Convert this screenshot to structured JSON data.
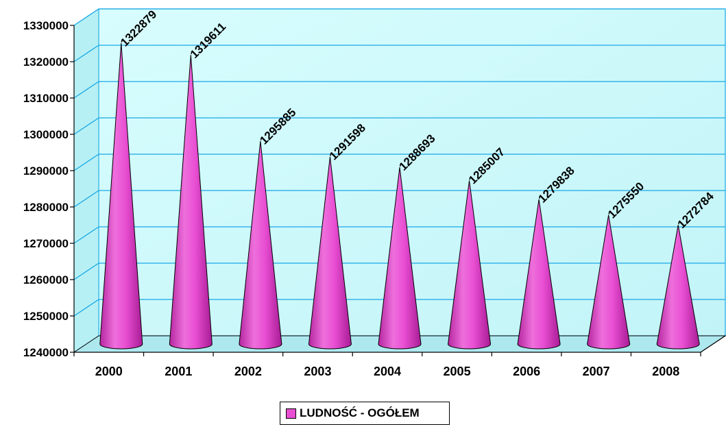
{
  "chart_data": {
    "type": "bar",
    "bar_shape": "cone",
    "categories": [
      "2000",
      "2001",
      "2002",
      "2003",
      "2004",
      "2005",
      "2006",
      "2007",
      "2008"
    ],
    "series": [
      {
        "name": "LUDNOŚĆ - OGÓŁEM",
        "values": [
          1322879,
          1319611,
          1295885,
          1291598,
          1288693,
          1285007,
          1279838,
          1275550,
          1272784
        ],
        "data_labels": [
          "1322879",
          "1319611",
          "1295885",
          "1291598",
          "1288693",
          "1285007",
          "1279838",
          "1275550",
          "1272784"
        ]
      }
    ],
    "yticks": [
      "1240000",
      "1250000",
      "1260000",
      "1270000",
      "1280000",
      "1290000",
      "1300000",
      "1310000",
      "1320000",
      "1330000"
    ],
    "ylim": [
      1240000,
      1330000
    ],
    "title": "",
    "xlabel": "",
    "ylabel": "",
    "grid": true,
    "legend_position": "bottom",
    "colors": {
      "bar_fill": "#e84fd2",
      "bar_dark": "#a0208f",
      "bar_light": "#f07ee2",
      "plot_back": "#c7fafc",
      "plot_back_light": "#dcfdfe",
      "floor": "#aee8ef",
      "gridline": "#19a8e6"
    }
  }
}
